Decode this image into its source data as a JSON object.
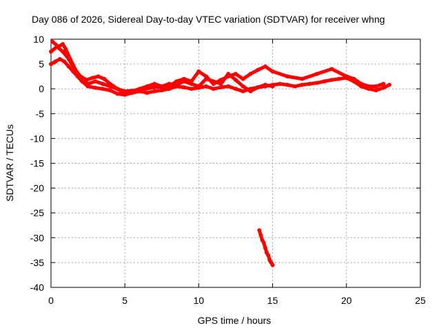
{
  "chart_data": {
    "type": "scatter",
    "title": "Day 086 of 2026, Sidereal Day-to-day VTEC variation (SDTVAR) for receiver whng",
    "xlabel": "GPS time / hours",
    "ylabel": "SDTVAR / TECUs",
    "xlim": [
      0,
      25
    ],
    "ylim": [
      -40,
      10
    ],
    "xticks": [
      0,
      5,
      10,
      15,
      20,
      25
    ],
    "yticks": [
      10,
      5,
      0,
      -5,
      -10,
      -15,
      -20,
      -25,
      -30,
      -35,
      -40
    ],
    "xtick_labels": [
      "0",
      "5",
      "10",
      "15",
      "20",
      "25"
    ],
    "ytick_labels": [
      "10",
      "5",
      "0",
      "-5",
      "-10",
      "-15",
      "-20",
      "-25",
      "-30",
      "-35",
      "-40"
    ],
    "grid": true,
    "series_color": "#ff0000",
    "series": [
      {
        "name": "track-1",
        "x": [
          0.0,
          0.3,
          0.6,
          0.9,
          1.2,
          1.5,
          1.8,
          2.1,
          2.5,
          3.0,
          3.5,
          4.0,
          4.5,
          5.0,
          5.5,
          6.0,
          6.5,
          7.0,
          7.5,
          8.0,
          8.5,
          9.0,
          9.5,
          10.0,
          10.5,
          11.0,
          11.5,
          12.0,
          12.5,
          13.0,
          13.5,
          14.0,
          14.5,
          15.0,
          15.5,
          16.0,
          16.5,
          17.0,
          17.5,
          18.0,
          18.5,
          19.0,
          19.5,
          20.0,
          20.5,
          21.0,
          21.5,
          22.0,
          22.5,
          22.9
        ],
        "y": [
          5.0,
          5.5,
          6.0,
          5.5,
          4.5,
          3.5,
          2.5,
          1.5,
          0.5,
          0.2,
          0.0,
          -0.3,
          -1.0,
          -1.2,
          -0.8,
          -0.5,
          -0.8,
          -0.5,
          -0.3,
          0.0,
          0.5,
          0.3,
          0.0,
          0.2,
          0.5,
          0.0,
          0.3,
          0.5,
          0.0,
          -0.5,
          0.0,
          0.3,
          0.5,
          0.8,
          1.0,
          0.8,
          0.5,
          0.8,
          1.0,
          1.2,
          1.5,
          1.8,
          2.0,
          2.2,
          1.5,
          0.5,
          0.0,
          -0.3,
          0.2,
          0.8
        ]
      },
      {
        "name": "track-2",
        "x": [
          0.0,
          0.4,
          0.8,
          1.2,
          1.6,
          2.0,
          2.4,
          2.8,
          3.2,
          3.6,
          4.0,
          4.5,
          5.0,
          6.0,
          7.0,
          8.0,
          8.5,
          9.0,
          9.5,
          10.0,
          10.5,
          11.0,
          11.5,
          12.0,
          12.5,
          13.0,
          13.5,
          14.0,
          14.5,
          15.0,
          16.0,
          17.0,
          18.0,
          19.0,
          20.0,
          20.5,
          21.0,
          21.5,
          22.0,
          22.5
        ],
        "y": [
          7.5,
          8.5,
          7.5,
          6.0,
          4.0,
          2.5,
          1.8,
          2.2,
          2.5,
          2.0,
          1.0,
          0.0,
          -0.5,
          -0.2,
          0.3,
          0.5,
          1.5,
          2.0,
          1.5,
          3.5,
          2.5,
          1.0,
          1.8,
          2.5,
          3.0,
          2.0,
          3.0,
          3.8,
          4.5,
          3.5,
          2.5,
          2.0,
          3.0,
          4.0,
          2.5,
          2.0,
          1.0,
          0.5,
          0.5,
          1.0
        ]
      },
      {
        "name": "track-3",
        "x": [
          0.1,
          0.5,
          0.8,
          1.0,
          1.3,
          1.8,
          2.5,
          3.0,
          3.5,
          4.0,
          4.5,
          5.0,
          5.5,
          6.0,
          6.5,
          7.0,
          7.5,
          8.0,
          8.5,
          9.0,
          9.5,
          10.0,
          10.5,
          11.0,
          11.5,
          12.0,
          12.5,
          13.0,
          13.5,
          14.0,
          14.5,
          15.0
        ],
        "y": [
          9.5,
          8.5,
          9.0,
          8.0,
          6.0,
          3.0,
          1.0,
          1.5,
          1.0,
          0.5,
          0.0,
          -1.0,
          -0.5,
          0.0,
          0.5,
          1.0,
          0.5,
          1.0,
          0.8,
          1.5,
          1.0,
          0.5,
          2.0,
          1.5,
          1.0,
          3.0,
          1.8,
          0.5,
          -0.5,
          0.3,
          0.8,
          0.5
        ]
      },
      {
        "name": "track-4",
        "x": [
          14.1,
          14.2,
          14.3,
          14.4,
          14.5,
          14.6,
          14.7,
          14.8,
          14.9,
          15.0
        ],
        "y": [
          -28.5,
          -29.5,
          -30.5,
          -31.0,
          -32.0,
          -33.0,
          -33.5,
          -34.5,
          -35.0,
          -35.5
        ]
      }
    ]
  }
}
